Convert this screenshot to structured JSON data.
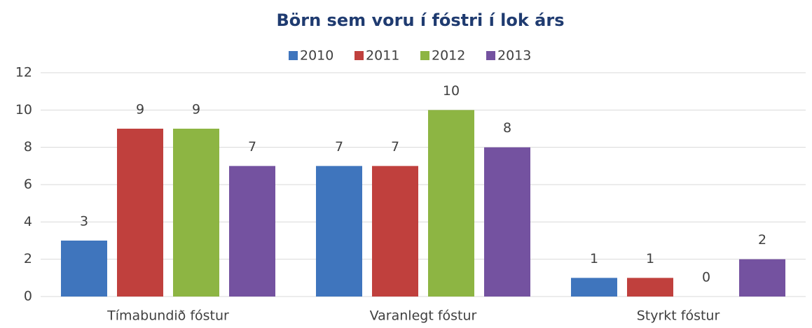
{
  "chart_data": {
    "type": "bar",
    "title": "Börn sem voru í fóstri í lok árs",
    "categories": [
      "Tímabundið fóstur",
      "Varanlegt fóstur",
      "Styrkt fóstur"
    ],
    "series": [
      {
        "name": "2010",
        "color": "#3f75bd",
        "values": [
          3,
          7,
          1
        ]
      },
      {
        "name": "2011",
        "color": "#c0403d",
        "values": [
          9,
          7,
          1
        ]
      },
      {
        "name": "2012",
        "color": "#8db543",
        "values": [
          9,
          10,
          0
        ]
      },
      {
        "name": "2013",
        "color": "#7452a0",
        "values": [
          7,
          8,
          2
        ]
      }
    ],
    "ylim": [
      0,
      12
    ],
    "yticks": [
      0,
      2,
      4,
      6,
      8,
      10,
      12
    ],
    "grid": true,
    "legend": "top"
  }
}
